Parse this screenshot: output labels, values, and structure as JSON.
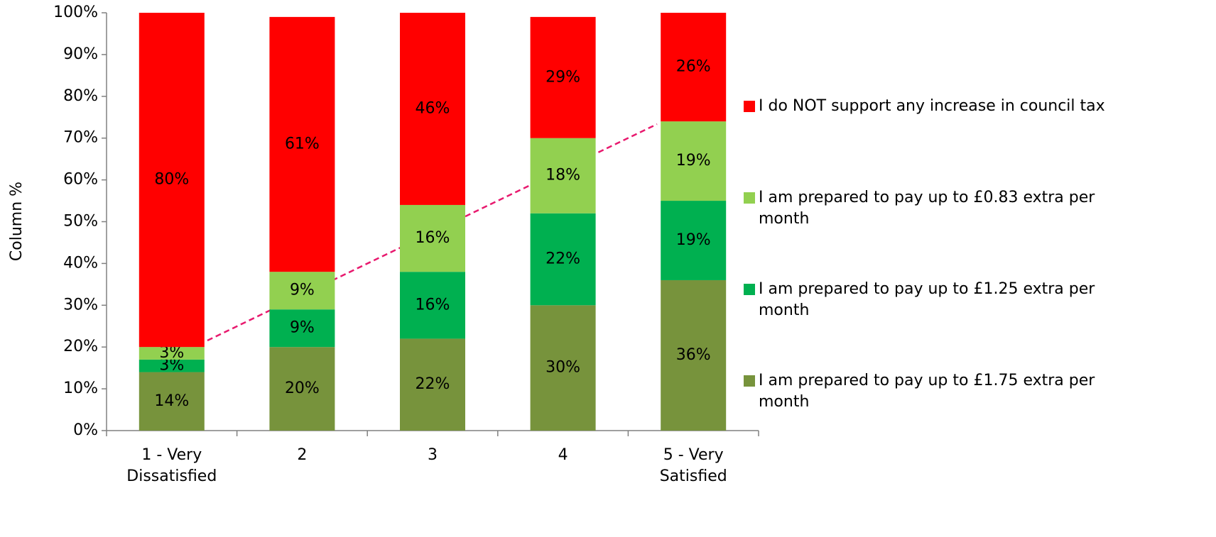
{
  "chart_data": {
    "type": "stacked_bar",
    "ylabel": "Column %",
    "categories": [
      "1 - Very Dissatisfied",
      "2",
      "3",
      "4",
      "5 - Very Satisfied"
    ],
    "series": [
      {
        "name": "I am prepared to pay up to £1.75 extra per month",
        "color": "#77933c",
        "label_color": "#ffffff",
        "values": [
          14,
          20,
          22,
          30,
          36
        ],
        "value_labels": [
          "14%",
          "20%",
          "22%",
          "30%",
          "36%"
        ]
      },
      {
        "name": "I am prepared to pay up to £1.25 extra per month",
        "color": "#00b050",
        "label_color": "#000000",
        "values": [
          3,
          9,
          16,
          22,
          19
        ],
        "value_labels": [
          "3%",
          "9%",
          "16%",
          "22%",
          "19%"
        ]
      },
      {
        "name": "I am prepared to pay up to £0.83 extra per month",
        "color": "#92d050",
        "label_color": "#000000",
        "values": [
          3,
          9,
          16,
          18,
          19
        ],
        "value_labels": [
          "3%",
          "9%",
          "16%",
          "18%",
          "19%"
        ]
      },
      {
        "name": "I do NOT support any increase in council tax",
        "color": "#ff0000",
        "label_color": "#ffffff",
        "values": [
          80,
          61,
          46,
          29,
          26
        ],
        "value_labels": [
          "80%",
          "61%",
          "46%",
          "29%",
          "26%"
        ]
      }
    ],
    "ylim": [
      0,
      100
    ],
    "yticks": [
      {
        "value": 0,
        "label": "0%"
      },
      {
        "value": 10,
        "label": "10%"
      },
      {
        "value": 20,
        "label": "20%"
      },
      {
        "value": 30,
        "label": "30%"
      },
      {
        "value": 40,
        "label": "40%"
      },
      {
        "value": 50,
        "label": "50%"
      },
      {
        "value": 60,
        "label": "60%"
      },
      {
        "value": 70,
        "label": "70%"
      },
      {
        "value": 80,
        "label": "80%"
      },
      {
        "value": 90,
        "label": "90%"
      },
      {
        "value": 100,
        "label": "100%"
      }
    ],
    "legend": "right"
  }
}
